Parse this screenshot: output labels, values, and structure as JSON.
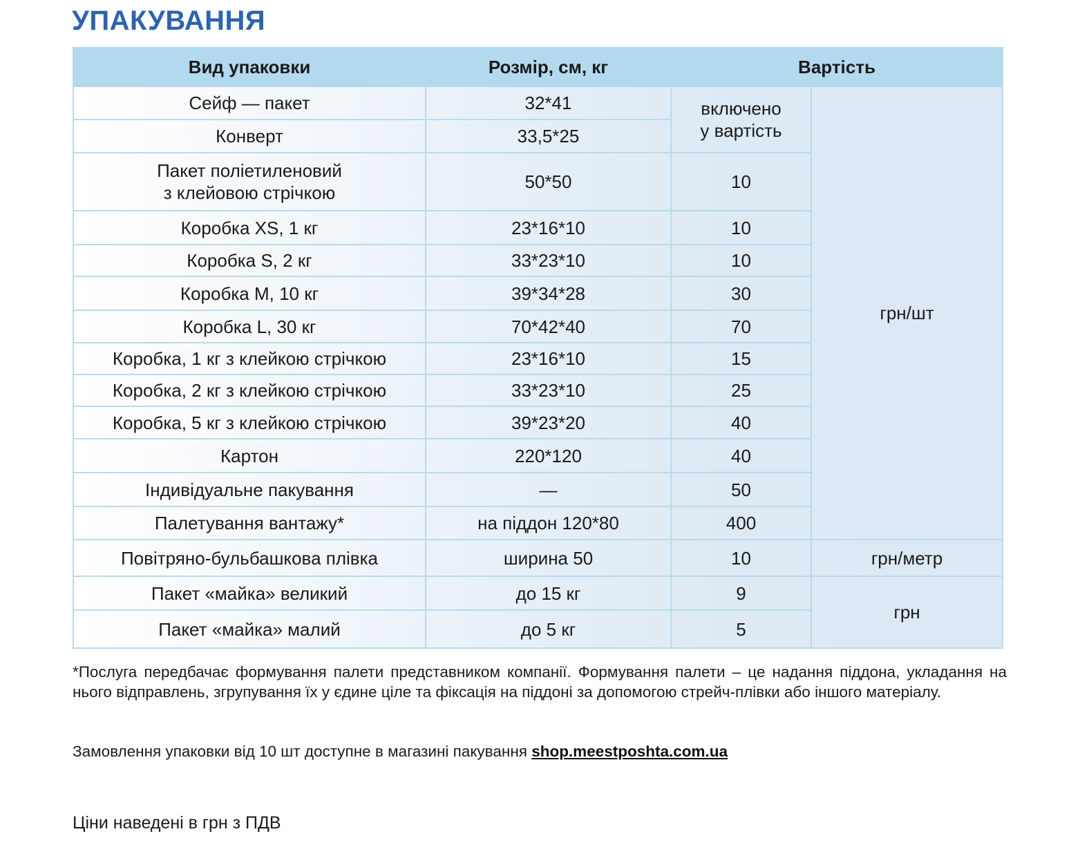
{
  "title": "УПАКУВАННЯ",
  "table": {
    "headers": [
      "Вид упаковки",
      "Розмір, см, кг",
      "Вартість"
    ],
    "rows": [
      {
        "type": "Сейф — пакет",
        "size": "32*41"
      },
      {
        "type": "Конверт",
        "size": "33,5*25"
      },
      {
        "type": "Пакет поліетиленовий\nз клейовою стрічкою",
        "size": "50*50",
        "price": "10"
      },
      {
        "type": "Коробка XS, 1 кг",
        "size": "23*16*10",
        "price": "10"
      },
      {
        "type": "Коробка S, 2 кг",
        "size": "33*23*10",
        "price": "10"
      },
      {
        "type": "Коробка M, 10 кг",
        "size": "39*34*28",
        "price": "30"
      },
      {
        "type": "Коробка L, 30 кг",
        "size": "70*42*40",
        "price": "70"
      },
      {
        "type": "Коробка, 1 кг з клейкою стрічкою",
        "size": "23*16*10",
        "price": "15"
      },
      {
        "type": "Коробка, 2 кг з клейкою стрічкою",
        "size": "33*23*10",
        "price": "25"
      },
      {
        "type": "Коробка, 5 кг з клейкою стрічкою",
        "size": "39*23*20",
        "price": "40"
      },
      {
        "type": "Картон",
        "size": "220*120",
        "price": "40"
      },
      {
        "type": "Індивідуальне пакування",
        "size": "—",
        "price": "50"
      },
      {
        "type": "Палетування вантажу*",
        "size": "на піддон 120*80",
        "price": "400"
      },
      {
        "type": "Повітряно-бульбашкова плівка",
        "size": "ширина 50",
        "price": "10"
      },
      {
        "type": "Пакет «майка» великий",
        "size": "до 15 кг",
        "price": "9"
      },
      {
        "type": "Пакет «майка» малий",
        "size": "до 5 кг",
        "price": "5"
      }
    ],
    "included_note": "включено\nу вартість",
    "units": {
      "per_piece": "грн/шт",
      "per_meter": "грн/метр",
      "uah": "грн"
    }
  },
  "footnote": "*Послуга передбачає формування палети представником компанії. Формування палети – це надання піддона, укладання на нього відправлень, згрупування їх у єдине ціле та фіксація на піддоні за допомогою стрейч-плівки або іншого матеріалу.",
  "order_text": "Замовлення упаковки від 10 шт доступне в магазині пакування ",
  "order_link": "shop.meestposhta.com.ua",
  "vat_note": "Ціни наведені в грн з ПДВ",
  "colors": {
    "title": "#2e63ad",
    "header_bg": "#b3d9ef",
    "border": "#b8daee"
  }
}
